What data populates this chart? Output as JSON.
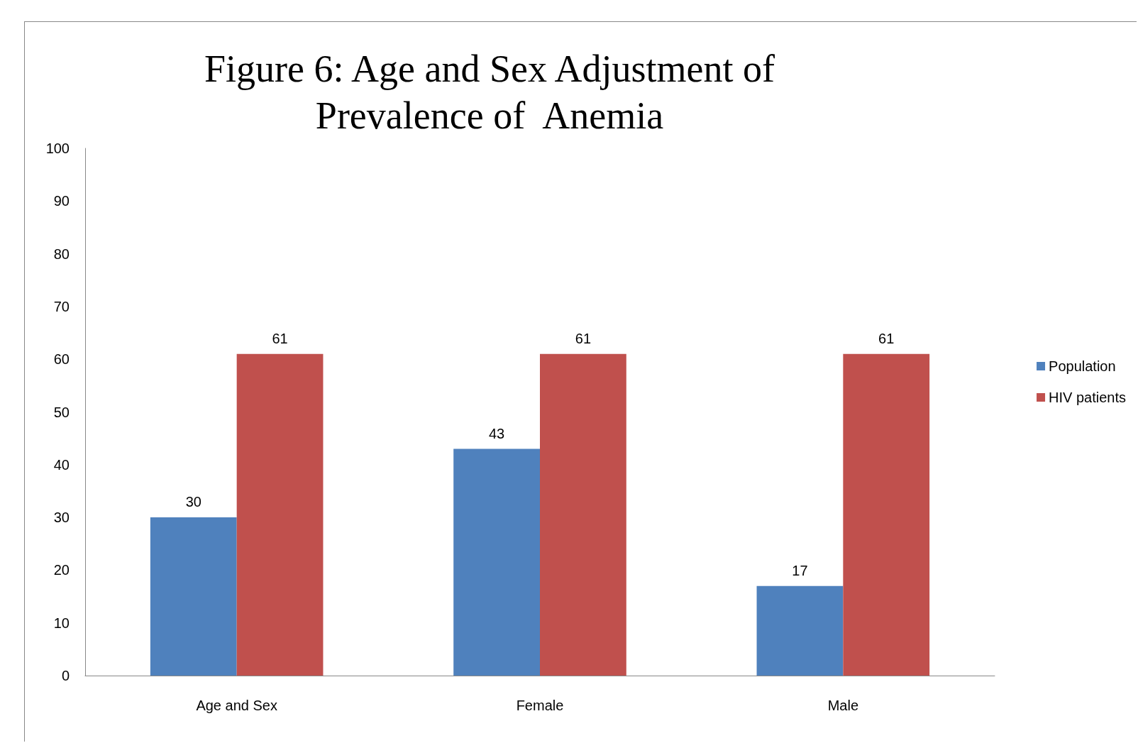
{
  "chart_data": {
    "type": "bar",
    "title": "Figure 6: Age and Sex Adjustment of\nPrevalence of  Anemia",
    "categories": [
      "Age and Sex",
      "Female",
      "Male"
    ],
    "series": [
      {
        "name": "Population",
        "color": "#4f81bd",
        "values": [
          30,
          43,
          17
        ]
      },
      {
        "name": "HIV patients",
        "color": "#c0504d",
        "values": [
          61,
          61,
          61
        ]
      }
    ],
    "ylim": [
      0,
      100
    ],
    "yticks": [
      0,
      10,
      20,
      30,
      40,
      50,
      60,
      70,
      80,
      90,
      100
    ],
    "grid": false,
    "legend": "right",
    "data_labels": true
  }
}
